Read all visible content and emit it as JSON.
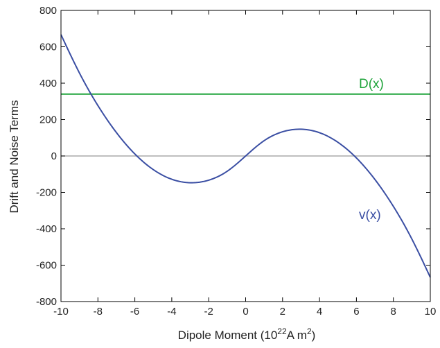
{
  "chart_data": {
    "type": "line",
    "xlabel_main": "Dipole Moment  (10",
    "xlabel_sup1": "22",
    "xlabel_mid": "A m",
    "xlabel_sup2": "2",
    "xlabel_end": ")",
    "ylabel": "Drift and Noise Terms",
    "xlim": [
      -10,
      10
    ],
    "ylim": [
      -800,
      800
    ],
    "xticks": [
      -10,
      -8,
      -6,
      -4,
      -2,
      0,
      2,
      4,
      6,
      8,
      10
    ],
    "yticks": [
      -800,
      -600,
      -400,
      -200,
      0,
      200,
      400,
      600,
      800
    ],
    "grid": false,
    "zero_line": {
      "y": 0,
      "color": "#999999"
    },
    "series": [
      {
        "name": "D(x)",
        "color": "#1fa33a",
        "x": [
          -10,
          10
        ],
        "y": [
          340,
          340
        ]
      },
      {
        "name": "v(x)",
        "color": "#3a4ea3",
        "x": [
          -10,
          -9,
          -8,
          -7,
          -6,
          -5,
          -4,
          -3,
          -2,
          -1,
          0,
          1,
          2,
          3,
          4,
          5,
          6,
          7,
          8,
          9,
          10
        ],
        "y": [
          667,
          456,
          277,
          129,
          11,
          -75,
          -128,
          -147,
          -133,
          -84,
          0,
          84,
          133,
          147,
          128,
          75,
          -11,
          -129,
          -277,
          -456,
          -667
        ]
      }
    ]
  }
}
